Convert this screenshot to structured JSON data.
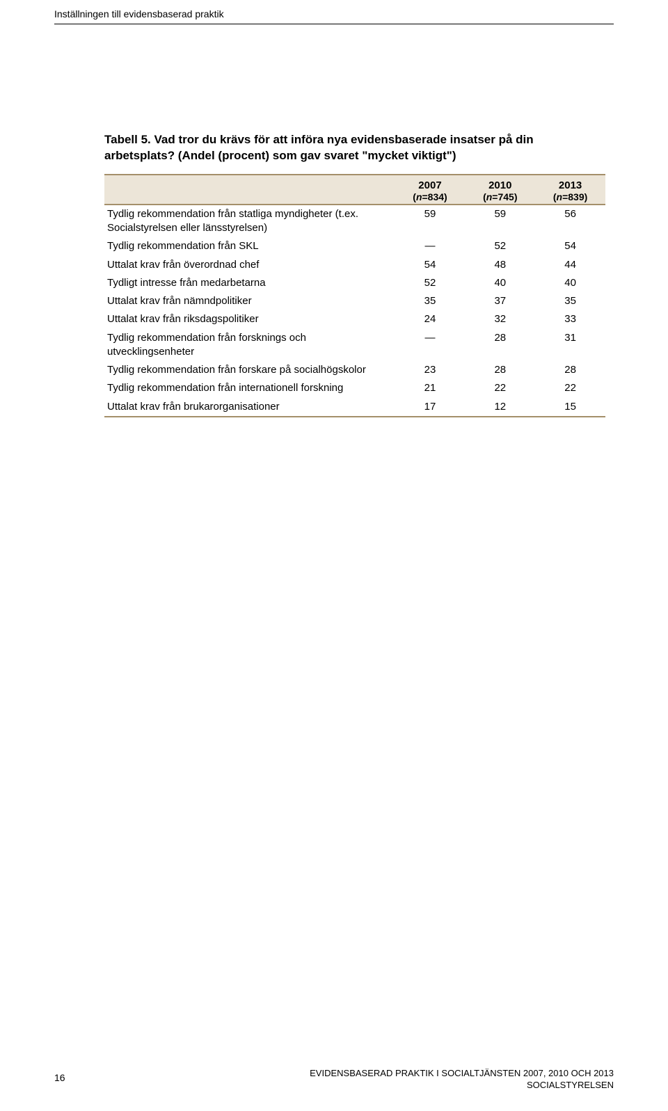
{
  "header": {
    "running_title": "Inställningen till evidensbaserad praktik"
  },
  "table": {
    "caption_label": "Tabell 5.",
    "caption_text": " Vad tror du krävs för att införa nya evidensbaserade insatser på din arbetsplats? (Andel (procent) som gav svaret \"mycket viktigt\")",
    "columns": [
      {
        "year": "2007",
        "n_prefix": "n",
        "n_val": "=834"
      },
      {
        "year": "2010",
        "n_prefix": "n",
        "n_val": "=745"
      },
      {
        "year": "2013",
        "n_prefix": "n",
        "n_val": "=839"
      }
    ],
    "rows": [
      {
        "label": "Tydlig rekommendation från statliga myndigheter (t.ex. Socialstyrelsen eller länsstyrelsen)",
        "v": [
          "59",
          "59",
          "56"
        ]
      },
      {
        "label": "Tydlig rekommendation från SKL",
        "v": [
          "—",
          "52",
          "54"
        ]
      },
      {
        "label": "Uttalat krav från överordnad chef",
        "v": [
          "54",
          "48",
          "44"
        ]
      },
      {
        "label": "Tydligt intresse från medarbetarna",
        "v": [
          "52",
          "40",
          "40"
        ]
      },
      {
        "label": "Uttalat krav från nämndpolitiker",
        "v": [
          "35",
          "37",
          "35"
        ]
      },
      {
        "label": "Uttalat krav från riksdagspolitiker",
        "v": [
          "24",
          "32",
          "33"
        ]
      },
      {
        "label": "Tydlig rekommendation från forsknings och utvecklingsenheter",
        "v": [
          "—",
          "28",
          "31"
        ]
      },
      {
        "label": "Tydlig rekommendation från forskare på socialhögskolor",
        "v": [
          "23",
          "28",
          "28"
        ]
      },
      {
        "label": "Tydlig rekommendation från internationell forskning",
        "v": [
          "21",
          "22",
          "22"
        ]
      },
      {
        "label": "Uttalat krav från brukarorganisationer",
        "v": [
          "17",
          "12",
          "15"
        ]
      }
    ]
  },
  "footer": {
    "page_number": "16",
    "line1": "EVIDENSBASERAD PRAKTIK I SOCIALTJÄNSTEN 2007, 2010 OCH 2013",
    "line2": "SOCIALSTYRELSEN"
  }
}
